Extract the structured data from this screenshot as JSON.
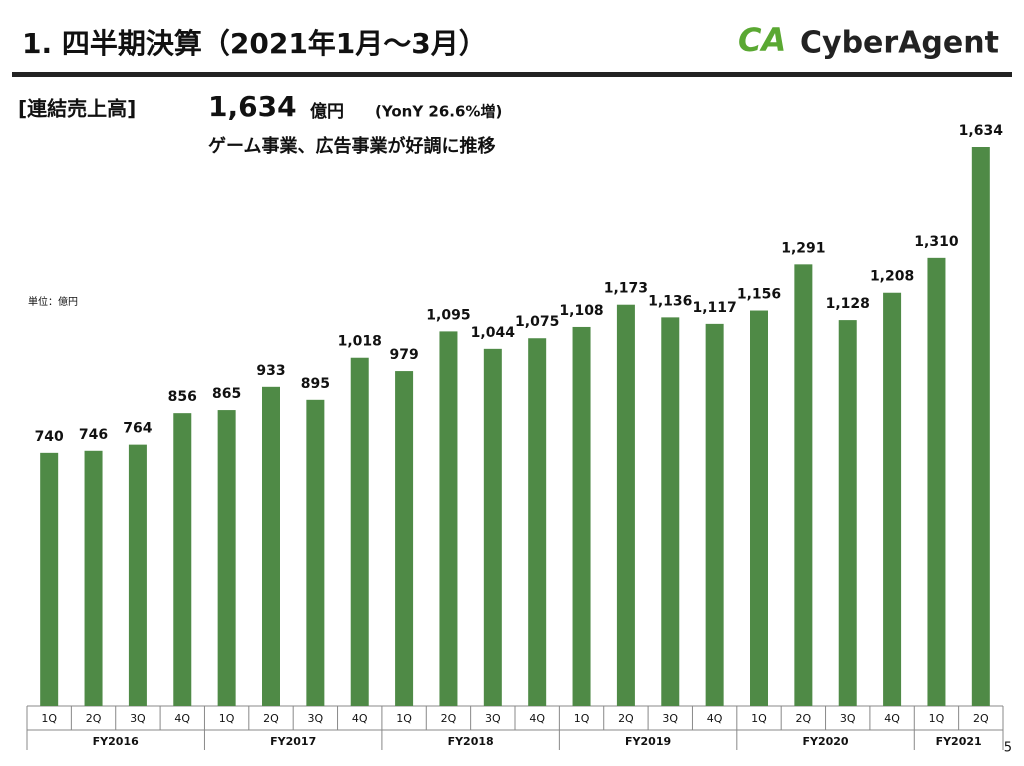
{
  "header": {
    "title": "1. 四半期決算（2021年1月～3月）",
    "logo_mark": "CA",
    "logo_text": "CyberAgent"
  },
  "summary": {
    "label": "[連結売上高]",
    "amount": "1,634",
    "unit": "億円",
    "growth": "(YonY 26.6%増)",
    "comment": "ゲーム事業、広告事業が好調に推移"
  },
  "page_number": "5",
  "chart_data": {
    "type": "bar",
    "unit_note": "単位：億円",
    "color": "#4f8a46",
    "ylim": [
      0,
      1634
    ],
    "groups": [
      {
        "label": "FY2016",
        "categories": [
          "1Q",
          "2Q",
          "3Q",
          "4Q"
        ],
        "values": [
          740,
          746,
          764,
          856
        ],
        "value_labels": [
          "740",
          "746",
          "764",
          "856"
        ]
      },
      {
        "label": "FY2017",
        "categories": [
          "1Q",
          "2Q",
          "3Q",
          "4Q"
        ],
        "values": [
          865,
          933,
          895,
          1018
        ],
        "value_labels": [
          "865",
          "933",
          "895",
          "1,018"
        ]
      },
      {
        "label": "FY2018",
        "categories": [
          "1Q",
          "2Q",
          "3Q",
          "4Q"
        ],
        "values": [
          979,
          1095,
          1044,
          1075
        ],
        "value_labels": [
          "979",
          "1,095",
          "1,044",
          "1,075"
        ]
      },
      {
        "label": "FY2019",
        "categories": [
          "1Q",
          "2Q",
          "3Q",
          "4Q"
        ],
        "values": [
          1108,
          1173,
          1136,
          1117
        ],
        "value_labels": [
          "1,108",
          "1,173",
          "1,136",
          "1,117"
        ]
      },
      {
        "label": "FY2020",
        "categories": [
          "1Q",
          "2Q",
          "3Q",
          "4Q"
        ],
        "values": [
          1156,
          1291,
          1128,
          1208
        ],
        "value_labels": [
          "1,156",
          "1,291",
          "1,128",
          "1,208"
        ]
      },
      {
        "label": "FY2021",
        "categories": [
          "1Q",
          "2Q"
        ],
        "values": [
          1310,
          1634
        ],
        "value_labels": [
          "1,310",
          "1,634"
        ]
      }
    ]
  }
}
